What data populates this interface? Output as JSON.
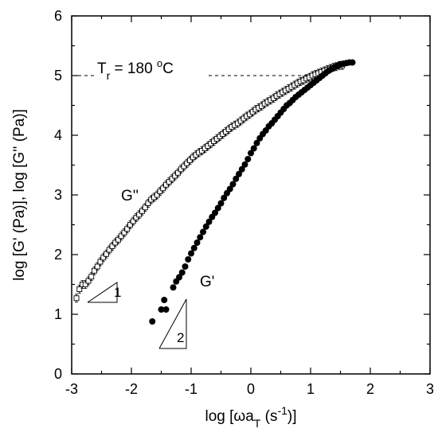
{
  "chart_data": {
    "type": "scatter",
    "title": "",
    "xlabel": "log [ωa",
    "xlabel_sub": "T",
    "xlabel_tail": " (s",
    "xlabel_sup": "-1",
    "xlabel_end": ")]",
    "ylabel": "log [G' (Pa)], log [G'' (Pa)]",
    "xlim": [
      -3,
      3
    ],
    "ylim": [
      0,
      6
    ],
    "xticks": [
      -3,
      -2,
      -1,
      0,
      1,
      2,
      3
    ],
    "yticks": [
      0,
      1,
      2,
      3,
      4,
      5,
      6
    ],
    "grid": false,
    "legend": "none",
    "annotations": {
      "temp_T": "T",
      "temp_sub": "r",
      "temp_value": " = 180 ",
      "temp_deg": "o",
      "temp_unit": "C",
      "gpp_label": "G''",
      "gp_label": "G'",
      "slope1": "1",
      "slope2": "2"
    },
    "series": [
      {
        "marker": "open-square-with-errorbar",
        "x": [
          -2.92,
          -2.87,
          -2.82,
          -2.77,
          -2.72,
          -2.67,
          -2.62,
          -2.57,
          -2.52,
          -2.47,
          -2.42,
          -2.37,
          -2.32,
          -2.27,
          -2.22,
          -2.17,
          -2.12,
          -2.07,
          -2.02,
          -1.97,
          -1.92,
          -1.87,
          -1.82,
          -1.77,
          -1.72,
          -1.67,
          -1.62,
          -1.57,
          -1.52,
          -1.47,
          -1.42,
          -1.37,
          -1.32,
          -1.27,
          -1.22,
          -1.17,
          -1.12,
          -1.07,
          -1.02,
          -0.97,
          -0.92,
          -0.87,
          -0.82,
          -0.77,
          -0.72,
          -0.67,
          -0.62,
          -0.57,
          -0.52,
          -0.47,
          -0.42,
          -0.37,
          -0.32,
          -0.27,
          -0.22,
          -0.17,
          -0.12,
          -0.07,
          -0.02,
          0.03,
          0.08,
          0.13,
          0.18,
          0.23,
          0.28,
          0.33,
          0.38,
          0.43,
          0.48,
          0.53,
          0.58,
          0.63,
          0.68,
          0.73,
          0.78,
          0.83,
          0.88,
          0.93,
          0.98,
          1.03,
          1.08,
          1.13,
          1.18,
          1.23,
          1.28,
          1.33,
          1.38,
          1.43,
          1.48,
          1.53
        ],
        "y": [
          1.27,
          1.42,
          1.5,
          1.5,
          1.56,
          1.63,
          1.73,
          1.8,
          1.88,
          1.95,
          2.01,
          2.08,
          2.14,
          2.2,
          2.25,
          2.31,
          2.37,
          2.43,
          2.5,
          2.56,
          2.62,
          2.67,
          2.73,
          2.79,
          2.86,
          2.92,
          2.96,
          3.0,
          3.06,
          3.11,
          3.17,
          3.22,
          3.27,
          3.32,
          3.37,
          3.43,
          3.48,
          3.53,
          3.58,
          3.63,
          3.67,
          3.71,
          3.74,
          3.78,
          3.82,
          3.86,
          3.9,
          3.94,
          3.98,
          4.02,
          4.06,
          4.1,
          4.14,
          4.17,
          4.2,
          4.24,
          4.28,
          4.32,
          4.35,
          4.39,
          4.43,
          4.46,
          4.49,
          4.53,
          4.56,
          4.59,
          4.62,
          4.66,
          4.69,
          4.72,
          4.75,
          4.78,
          4.81,
          4.84,
          4.87,
          4.9,
          4.92,
          4.95,
          4.97,
          5.0,
          5.02,
          5.04,
          5.06,
          5.08,
          5.1,
          5.12,
          5.14,
          5.15,
          5.17,
          5.17
        ]
      },
      {
        "marker": "filled-circle",
        "x": [
          -1.65,
          -1.5,
          -1.45,
          -1.42,
          -1.3,
          -1.25,
          -1.2,
          -1.15,
          -1.1,
          -1.05,
          -1.0,
          -0.95,
          -0.9,
          -0.85,
          -0.8,
          -0.75,
          -0.7,
          -0.65,
          -0.6,
          -0.55,
          -0.5,
          -0.45,
          -0.4,
          -0.35,
          -0.3,
          -0.25,
          -0.2,
          -0.15,
          -0.1,
          -0.05,
          0.0,
          0.05,
          0.1,
          0.15,
          0.2,
          0.25,
          0.3,
          0.35,
          0.4,
          0.45,
          0.5,
          0.55,
          0.6,
          0.65,
          0.7,
          0.75,
          0.8,
          0.85,
          0.9,
          0.95,
          1.0,
          1.05,
          1.1,
          1.15,
          1.2,
          1.25,
          1.3,
          1.35,
          1.4,
          1.45,
          1.5,
          1.55,
          1.6,
          1.65,
          1.7
        ],
        "y": [
          0.88,
          1.08,
          1.24,
          1.08,
          1.45,
          1.55,
          1.62,
          1.7,
          1.8,
          1.92,
          2.02,
          2.11,
          2.2,
          2.29,
          2.38,
          2.47,
          2.55,
          2.63,
          2.7,
          2.78,
          2.86,
          2.95,
          3.03,
          3.1,
          3.18,
          3.27,
          3.35,
          3.43,
          3.51,
          3.6,
          3.7,
          3.78,
          3.87,
          3.95,
          4.02,
          4.08,
          4.15,
          4.2,
          4.26,
          4.32,
          4.38,
          4.44,
          4.5,
          4.54,
          4.59,
          4.64,
          4.68,
          4.72,
          4.76,
          4.8,
          4.84,
          4.88,
          4.92,
          4.96,
          5.0,
          5.04,
          5.08,
          5.11,
          5.14,
          5.17,
          5.19,
          5.2,
          5.21,
          5.22,
          5.22
        ]
      }
    ]
  }
}
